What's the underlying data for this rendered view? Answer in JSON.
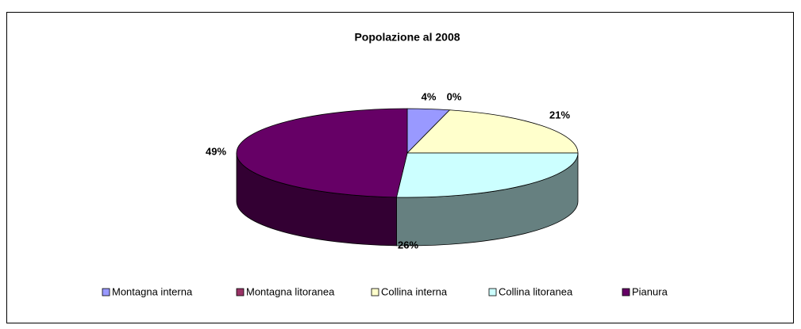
{
  "chart_data": {
    "type": "pie3d",
    "title": "Popolazione al 2008",
    "categories": [
      "Montagna interna",
      "Montagna litoranea",
      "Collina interna",
      "Collina litoranea",
      "Pianura"
    ],
    "values": [
      4,
      0,
      21,
      26,
      49
    ],
    "value_labels": [
      "4%",
      "0%",
      "21%",
      "26%",
      "49%"
    ],
    "colors": [
      "#9999ff",
      "#993366",
      "#ffffcc",
      "#ccffff",
      "#660066"
    ],
    "legend": "bottom"
  }
}
